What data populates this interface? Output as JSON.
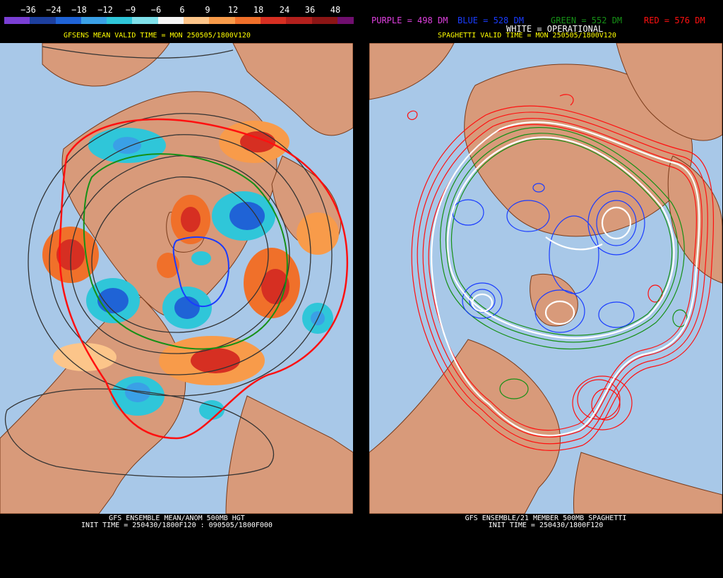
{
  "left": {
    "colorbar": {
      "labels": [
        "−36",
        "−24",
        "−18",
        "−12",
        "−9",
        "−6",
        "6",
        "9",
        "12",
        "18",
        "24",
        "36",
        "48"
      ],
      "colors": [
        "#7a3fd4",
        "#1d3f9e",
        "#1f63d6",
        "#3aa0e6",
        "#2fc6d9",
        "#7fe0ea",
        "#f5f5f5",
        "#fcc58a",
        "#f89b4a",
        "#f0702a",
        "#d62f22",
        "#b3201d",
        "#8b1515",
        "#700f6f"
      ]
    },
    "subtitle": "GFSENS MEAN VALID TIME = MON 250505/1800V120",
    "caption_line1": "GFS ENSEMBLE MEAN/ANOM 500MB HGT",
    "caption_line2": "INIT TIME = 250430/1800F120 : 090505/1800F000"
  },
  "right": {
    "legend_purple": "PURPLE = 498 DM",
    "legend_blue": "BLUE = 528 DM",
    "legend_green": "GREEN = 552 DM",
    "legend_red": "RED = 576 DM",
    "legend_white": "WHITE = OPERATIONAL",
    "subtitle": "SPAGHETTI VALID TIME = MON 250505/1800V120",
    "caption_line1": "GFS ENSEMBLE/21 MEMBER 500MB SPAGHETTI",
    "caption_line2": "INIT TIME = 250430/1800F120"
  },
  "colors": {
    "ocean": "#a8c8e8",
    "land": "#d89a7a",
    "border": "#7a3b1a",
    "purple": "#e040e0",
    "blue": "#1a3cff",
    "green": "#169016",
    "red": "#ff1010",
    "white": "#ffffff"
  }
}
